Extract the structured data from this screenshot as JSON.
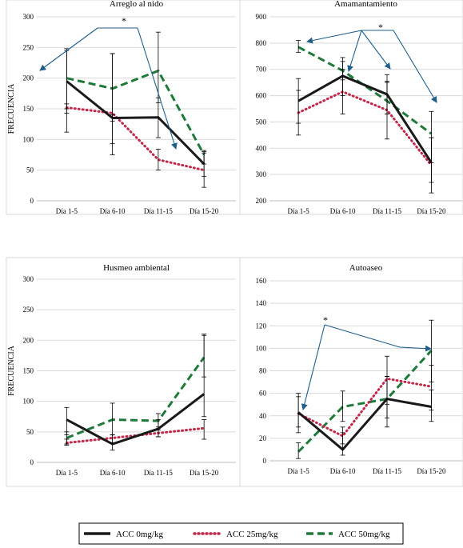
{
  "legend": {
    "items": [
      {
        "label": "ACC 0mg/kg",
        "color": "#1a1a1a",
        "style": "solid"
      },
      {
        "label": "ACC 25mg/kg",
        "color": "#c0294a",
        "style": "dotted"
      },
      {
        "label": "ACC 50mg/kg",
        "color": "#1f7a3a",
        "style": "dashed"
      }
    ]
  },
  "annotation_color": "#1f5f8a",
  "chart_data": [
    {
      "type": "line",
      "title": "Arreglo al nido",
      "ylabel": "FRECUENCIA",
      "categories": [
        "Día 1-5",
        "Día 6-10",
        "Día 11-15",
        "Día 15-20"
      ],
      "ylim": [
        0,
        300
      ],
      "yticks": [
        0,
        50,
        100,
        150,
        200,
        250,
        300
      ],
      "grid": true,
      "series": [
        {
          "name": "ACC 0mg/kg",
          "values": [
            195,
            135,
            136,
            60
          ],
          "err": [
            [
              112,
              248
            ],
            [
              93,
              240
            ],
            [
              103,
              168
            ],
            [
              40,
              80
            ]
          ]
        },
        {
          "name": "ACC 25mg/kg",
          "values": [
            152,
            143,
            67,
            50
          ],
          "err": [
            [
              143,
              158
            ],
            [
              75,
              140
            ],
            [
              50,
              84
            ],
            [
              22,
              78
            ]
          ]
        },
        {
          "name": "ACC 50mg/kg",
          "values": [
            200,
            183,
            212,
            75
          ],
          "err": [
            [
              150,
              245
            ],
            [
              130,
              240
            ],
            [
              160,
              275
            ],
            [
              60,
              82
            ]
          ]
        }
      ],
      "annotations": [
        {
          "text": "*"
        }
      ]
    },
    {
      "type": "line",
      "title": "Amamantamiento",
      "ylabel": "",
      "categories": [
        "Día 1-5",
        "Día 6-10",
        "Día 11-15",
        "Día 15-20"
      ],
      "ylim": [
        200,
        900
      ],
      "yticks": [
        200,
        300,
        400,
        500,
        600,
        700,
        800,
        900
      ],
      "grid": true,
      "series": [
        {
          "name": "ACC 0mg/kg",
          "values": [
            580,
            675,
            605,
            345
          ],
          "err": [
            [
              495,
              665
            ],
            [
              600,
              745
            ],
            [
              530,
              680
            ],
            [
              270,
              440
            ]
          ]
        },
        {
          "name": "ACC 25mg/kg",
          "values": [
            535,
            615,
            545,
            335
          ],
          "err": [
            [
              450,
              620
            ],
            [
              530,
              700
            ],
            [
              435,
              655
            ],
            [
              230,
              440
            ]
          ]
        },
        {
          "name": "ACC 50mg/kg",
          "values": [
            785,
            695,
            580,
            455
          ],
          "err": [
            [
              765,
              810
            ],
            [
              660,
              730
            ],
            [
              530,
              650
            ],
            [
              345,
              540
            ]
          ]
        }
      ],
      "annotations": [
        {
          "text": "*"
        }
      ]
    },
    {
      "type": "line",
      "title": "Husmeo ambiental",
      "ylabel": "FRECUENCIA",
      "categories": [
        "Día 1-5",
        "Día 6-10",
        "Día 11-15",
        "Día 15-20"
      ],
      "ylim": [
        0,
        300
      ],
      "yticks": [
        0,
        50,
        100,
        150,
        200,
        250,
        300
      ],
      "grid": true,
      "series": [
        {
          "name": "ACC 0mg/kg",
          "values": [
            70,
            30,
            55,
            112
          ],
          "err": [
            [
              45,
              90
            ],
            [
              20,
              45
            ],
            [
              42,
              70
            ],
            [
              75,
              210
            ]
          ]
        },
        {
          "name": "ACC 25mg/kg",
          "values": [
            32,
            40,
            48,
            56
          ],
          "err": [
            [
              28,
              38
            ],
            [
              32,
              45
            ],
            [
              42,
              53
            ],
            [
              38,
              70
            ]
          ]
        },
        {
          "name": "ACC 50mg/kg",
          "values": [
            40,
            70,
            68,
            172
          ],
          "err": [
            [
              30,
              50
            ],
            [
              45,
              97
            ],
            [
              58,
              80
            ],
            [
              140,
              208
            ]
          ]
        }
      ],
      "annotations": []
    },
    {
      "type": "line",
      "title": "Autoaseo",
      "ylabel": "",
      "categories": [
        "Día 1-5",
        "Día 6-10",
        "Día 11-15",
        "Día 15-20"
      ],
      "ylim": [
        0,
        160
      ],
      "yticks": [
        0,
        20,
        40,
        60,
        80,
        100,
        120,
        140,
        160
      ],
      "grid": true,
      "series": [
        {
          "name": "ACC 0mg/kg",
          "values": [
            43,
            10,
            55,
            48
          ],
          "err": [
            [
              25,
              60
            ],
            [
              5,
              25
            ],
            [
              30,
              75
            ],
            [
              35,
              63
            ]
          ]
        },
        {
          "name": "ACC 25mg/kg",
          "values": [
            42,
            22,
            73,
            66
          ],
          "err": [
            [
              30,
              57
            ],
            [
              15,
              30
            ],
            [
              50,
              93
            ],
            [
              45,
              85
            ]
          ]
        },
        {
          "name": "ACC 50mg/kg",
          "values": [
            8,
            48,
            55,
            98
          ],
          "err": [
            [
              2,
              16
            ],
            [
              35,
              62
            ],
            [
              38,
              75
            ],
            [
              70,
              125
            ]
          ]
        }
      ],
      "annotations": [
        {
          "text": "*"
        }
      ]
    }
  ]
}
